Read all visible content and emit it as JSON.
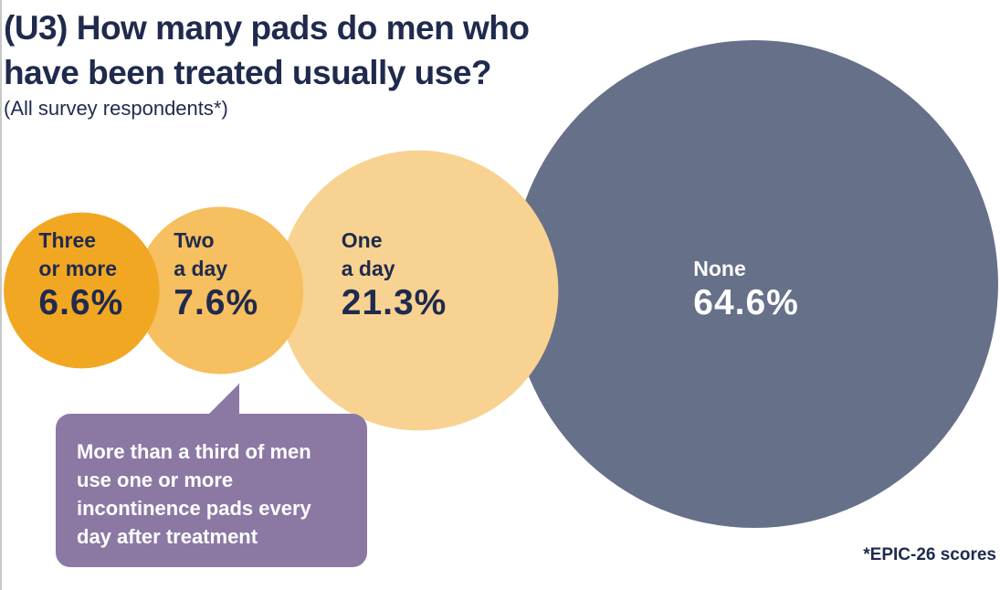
{
  "title": "(U3) How many pads do men who have been treated usually use?",
  "subtitle": "(All survey respondents*)",
  "chart_data": {
    "type": "bubble",
    "title": "(U3) How many pads do men who have been treated usually use?",
    "subtitle": "(All survey respondents*)",
    "unit": "%",
    "categories": [
      {
        "label_lines": [
          "Three",
          "or more"
        ],
        "value": 6.6,
        "display": "6.6%",
        "color": "#f2a723",
        "text_color": "#1f2a4d"
      },
      {
        "label_lines": [
          "Two",
          "a day"
        ],
        "value": 7.6,
        "display": "7.6%",
        "color": "#f6bf5f",
        "text_color": "#1f2a4d"
      },
      {
        "label_lines": [
          "One",
          "a day"
        ],
        "value": 21.3,
        "display": "21.3%",
        "color": "#f8d291",
        "text_color": "#1f2a4d"
      },
      {
        "label_lines": [
          "None"
        ],
        "value": 64.6,
        "display": "64.6%",
        "color": "#667089",
        "text_color": "#ffffff"
      }
    ]
  },
  "callout": {
    "text": "More than a third of men use one or more incontinence pads every day after treatment",
    "lines": [
      "More than a third of men",
      "use one or more",
      "incontinence pads every",
      "day after treatment"
    ],
    "color": "#8b79a4"
  },
  "footnote": "*EPIC-26 scores",
  "colors": {
    "heading": "#1f2a4d"
  }
}
